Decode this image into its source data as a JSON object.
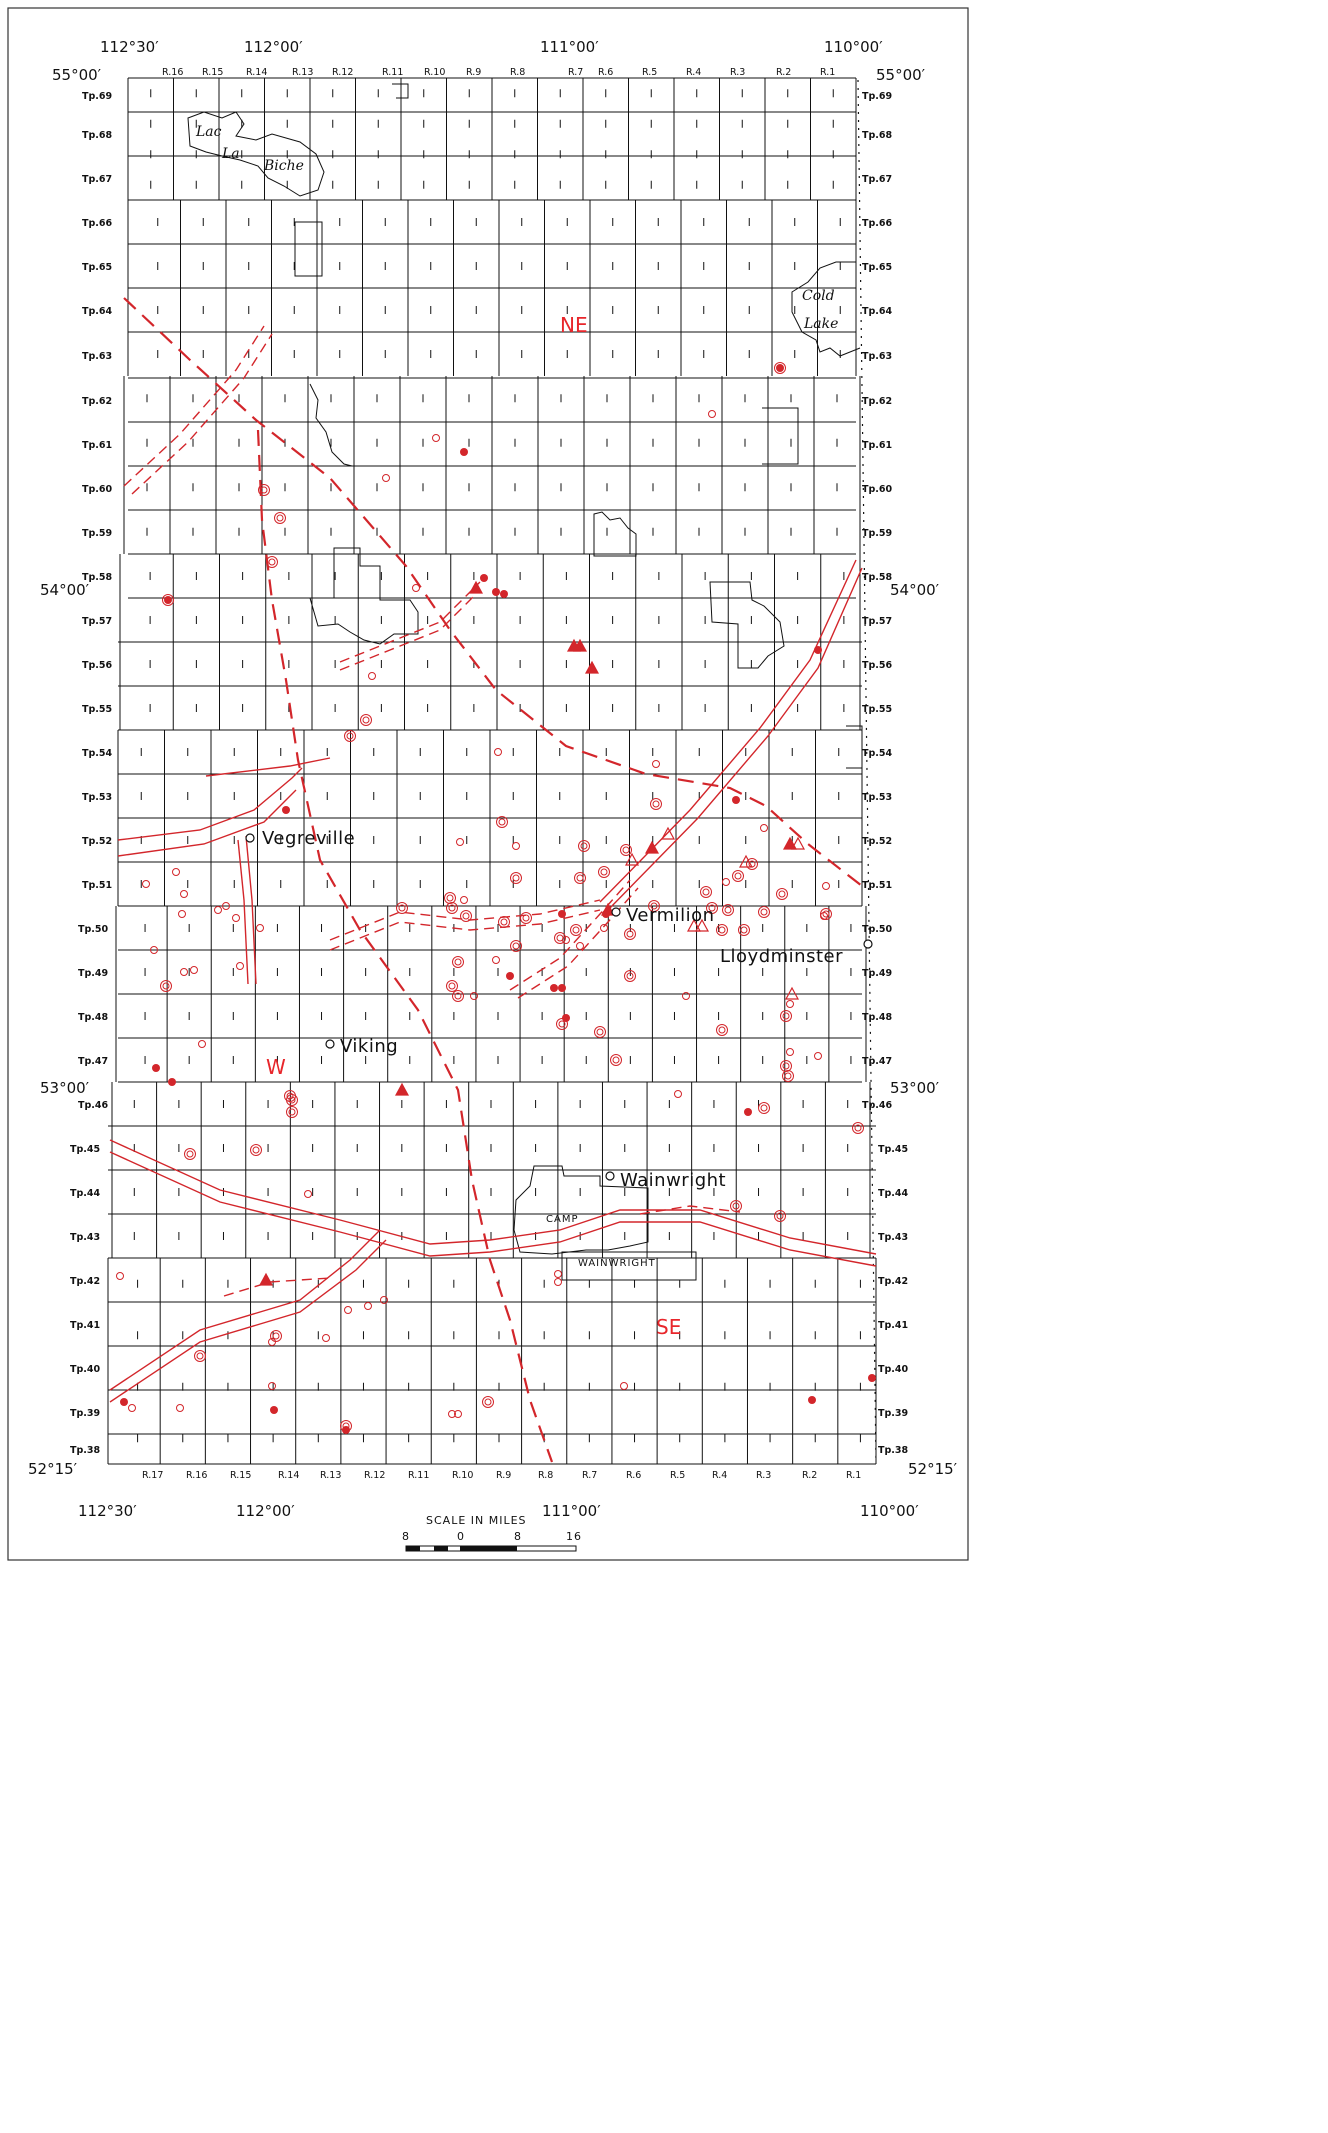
{
  "coords": {
    "top_left_lon": "112°30′",
    "top_mid_lon": "112°00′",
    "top_center_lon": "111°00′",
    "top_right_lon": "110°00′",
    "top_left_lat": "55°00′",
    "top_right_lat": "55°00′",
    "left_54": "54°00′",
    "right_54": "54°00′",
    "left_53": "53°00′",
    "right_53": "53°00′",
    "bottom_left_lat": "52°15′",
    "bottom_right_lat": "52°15′",
    "bottom_left_lon": "112°30′",
    "bottom_mid_lon": "112°00′",
    "bottom_center_lon": "111°00′",
    "bottom_right_lon": "110°00′"
  },
  "ranges_top": [
    "R.16",
    "R.15",
    "R.14",
    "R.13",
    "R.12",
    "R.11",
    "R.10",
    "R.9",
    "R.8",
    "R.7",
    "R.6",
    "R.5",
    "R.4",
    "R.3",
    "R.2",
    "R.1"
  ],
  "ranges_bottom": [
    "R.17",
    "R.16",
    "R.15",
    "R.14",
    "R.13",
    "R.12",
    "R.11",
    "R.10",
    "R.9",
    "R.8",
    "R.7",
    "R.6",
    "R.5",
    "R.4",
    "R.3",
    "R.2",
    "R.1"
  ],
  "townships_left": [
    "Tp.69",
    "Tp.68",
    "Tp.67",
    "Tp.66",
    "Tp.65",
    "Tp.64",
    "Tp.63",
    "Tp.62",
    "Tp.61",
    "Tp.60",
    "Tp.59",
    "Tp.58",
    "Tp.57",
    "Tp.56",
    "Tp.55",
    "Tp.54",
    "Tp.53",
    "Tp.52",
    "Tp.51",
    "Tp.50",
    "Tp.49",
    "Tp.48",
    "Tp.47",
    "Tp.46",
    "Tp.45",
    "Tp.44",
    "Tp.43",
    "Tp.42",
    "Tp.41",
    "Tp.40",
    "Tp.39",
    "Tp.38"
  ],
  "townships_right": [
    "Tp.69",
    "Tp.68",
    "Tp.67",
    "Tp.66",
    "Tp.65",
    "Tp.64",
    "Tp.63",
    "Tp.62",
    "Tp.61",
    "Tp.60",
    "Tp.59",
    "Tp.58",
    "Tp.57",
    "Tp.56",
    "Tp.55",
    "Tp.54",
    "Tp.53",
    "Tp.52",
    "Tp.51",
    "Tp.50",
    "Tp.49",
    "Tp.48",
    "Tp.47",
    "Tp.46",
    "Tp.45",
    "Tp.44",
    "Tp.43",
    "Tp.42",
    "Tp.41",
    "Tp.40",
    "Tp.39",
    "Tp.38"
  ],
  "lakes": {
    "lac_la_biche": [
      "Lac",
      "La",
      "Biche"
    ],
    "cold_lake": [
      "Cold",
      "Lake"
    ]
  },
  "towns": {
    "vegreville": "Vegreville",
    "vermilion": "Vermilion",
    "lloydminster": "Lloydminster",
    "viking": "Viking",
    "wainwright": "Wainwright"
  },
  "camp": {
    "line1": "CAMP",
    "line2": "WAINWRIGHT"
  },
  "zones": {
    "ne": "NE",
    "w": "W",
    "se": "SE"
  },
  "scale": {
    "title": "SCALE IN MILES",
    "labels": [
      "8",
      "0",
      "8",
      "16"
    ]
  },
  "colors": {
    "ink": "#111111",
    "feature_red": "#d3262b",
    "zone_red": "#e8262b",
    "paper": "#ffffff"
  }
}
